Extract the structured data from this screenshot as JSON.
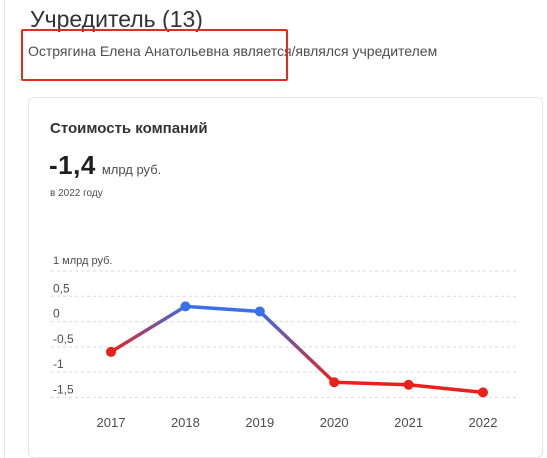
{
  "section": {
    "title": "Учредитель (13)",
    "founder_name": "Острягина Елена Анатольевна",
    "founder_suffix": " является/являлся учредителем"
  },
  "card": {
    "title": "Стоимость компаний",
    "value": "-1,4",
    "unit": "млрд руб.",
    "note": "в 2022 году"
  },
  "chart_data": {
    "type": "line",
    "ylabel": "1 млрд руб.",
    "categories": [
      "2017",
      "2018",
      "2019",
      "2020",
      "2021",
      "2022"
    ],
    "values": [
      -0.6,
      0.3,
      0.2,
      -1.2,
      -1.25,
      -1.4
    ],
    "y_ticks": [
      {
        "value": 1,
        "label": ""
      },
      {
        "value": 0.5,
        "label": "0,5"
      },
      {
        "value": 0,
        "label": "0"
      },
      {
        "value": -0.5,
        "label": "-0,5"
      },
      {
        "value": -1,
        "label": "-1"
      },
      {
        "value": -1.5,
        "label": "-1,5"
      }
    ],
    "ylim": [
      -1.65,
      1
    ],
    "grid": true,
    "colors": {
      "positive": "#3b6fe5",
      "negative": "#e8221b",
      "grid": "#d9d9d9"
    }
  }
}
